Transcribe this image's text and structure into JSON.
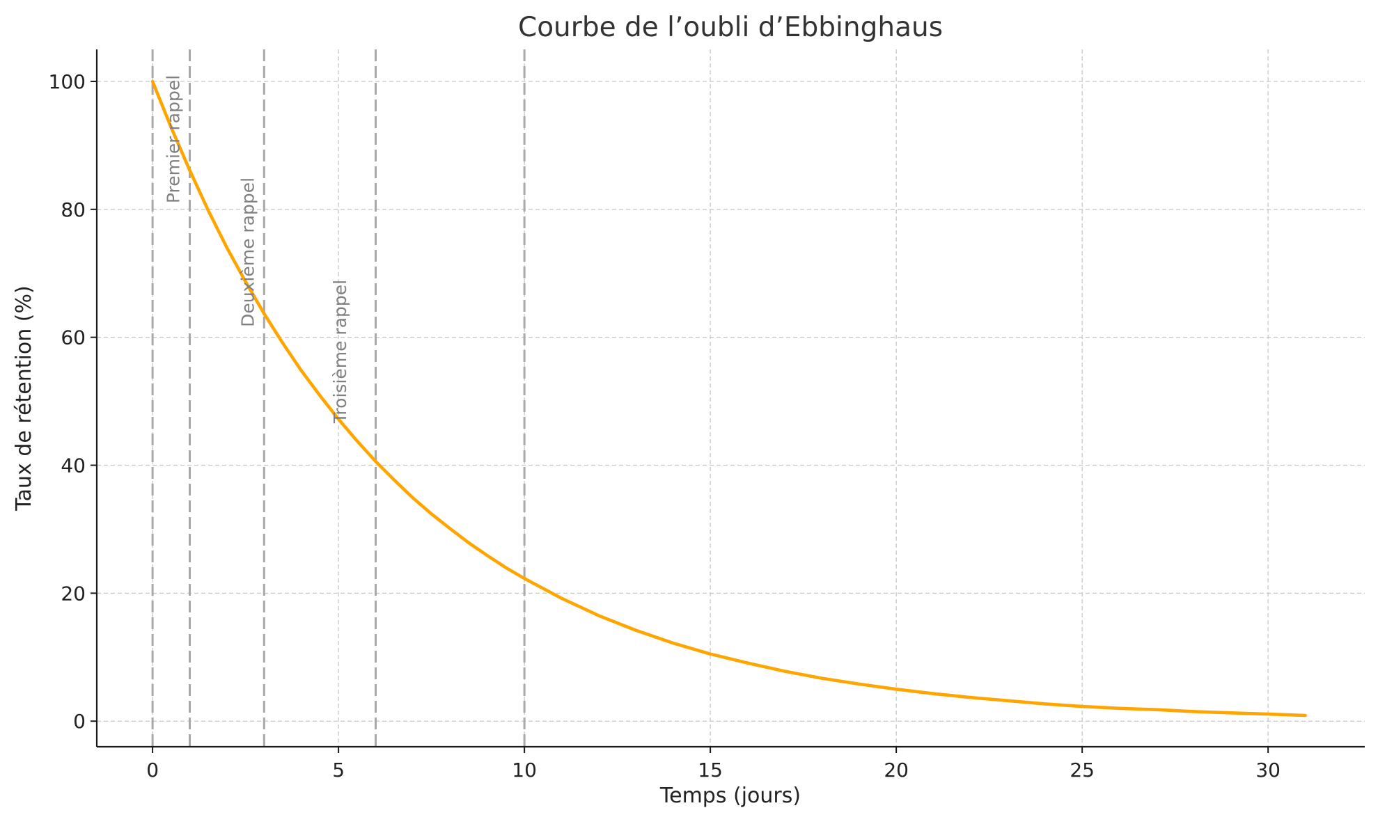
{
  "chart_data": {
    "type": "line",
    "title": "Courbe de l’oubli d’Ebbinghaus",
    "xlabel": "Temps (jours)",
    "ylabel": "Taux de rétention (%)",
    "xlim": [
      -1.5,
      32.6
    ],
    "ylim": [
      -4,
      105
    ],
    "xticks": [
      0,
      5,
      10,
      15,
      20,
      25,
      30
    ],
    "yticks": [
      0,
      20,
      40,
      60,
      80,
      100
    ],
    "grid": true,
    "series": [
      {
        "color": "#FFA500",
        "x": [
          0,
          0.5,
          1,
          1.5,
          2,
          2.5,
          3,
          3.5,
          4,
          4.5,
          5,
          5.5,
          6,
          6.5,
          7,
          7.5,
          8,
          8.5,
          9,
          9.5,
          10,
          11,
          12,
          13,
          14,
          15,
          16,
          17,
          18,
          19,
          20,
          21,
          22,
          23,
          24,
          25,
          26,
          27,
          28,
          29,
          30,
          31
        ],
        "y": [
          100,
          92.8,
          86.1,
          79.8,
          74.0,
          68.7,
          63.7,
          59.1,
          54.8,
          50.9,
          47.2,
          43.8,
          40.6,
          37.7,
          34.9,
          32.4,
          30.1,
          27.9,
          25.9,
          24.0,
          22.3,
          19.2,
          16.5,
          14.2,
          12.2,
          10.5,
          9.1,
          7.8,
          6.7,
          5.8,
          5.0,
          4.3,
          3.7,
          3.2,
          2.7,
          2.3,
          2.0,
          1.8,
          1.5,
          1.3,
          1.1,
          0.9
        ]
      }
    ],
    "markers": [
      {
        "x": 0,
        "style": "dashed"
      },
      {
        "x": 1,
        "style": "dashed",
        "label": "Premier rappel"
      },
      {
        "x": 3,
        "style": "dashed",
        "label": "Deuxième rappel"
      },
      {
        "x": 6,
        "style": "dashed",
        "label": "Troisième rappel"
      },
      {
        "x": 10,
        "style": "dashed"
      }
    ]
  }
}
